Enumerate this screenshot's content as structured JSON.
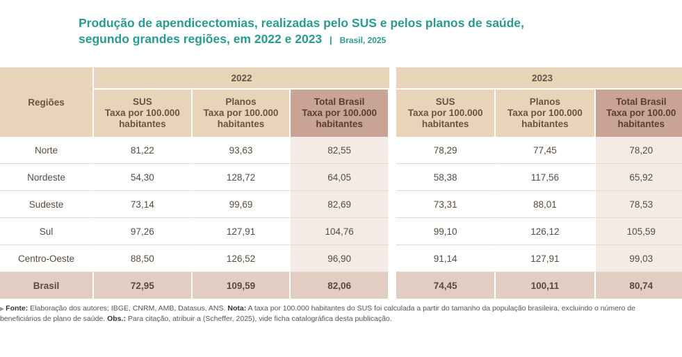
{
  "title": {
    "line1": "Produção de apendicectomias, realizadas pelo SUS e pelos planos de saúde,",
    "line2": "segundo grandes regiões, em 2022 e 2023",
    "separator": "|",
    "subtitle": "Brasil, 2025"
  },
  "table": {
    "regions_header": "Regiões",
    "years": [
      "2022",
      "2023"
    ],
    "columns": [
      {
        "l1": "SUS",
        "l2": "Taxa por 100.000",
        "l3": "habitantes"
      },
      {
        "l1": "Planos",
        "l2": "Taxa por 100.000",
        "l3": "habitantes"
      },
      {
        "l1": "Total Brasil",
        "l2": "Taxa por 100.000",
        "l3": "habitantes"
      }
    ],
    "columns_2023_total": {
      "l1": "Total Brasil",
      "l2": "Taxa por 100.00",
      "l3": "habitantes"
    },
    "rows": [
      {
        "region": "Norte",
        "y2022": [
          "81,22",
          "93,63",
          "82,55"
        ],
        "y2023": [
          "78,29",
          "77,45",
          "78,20"
        ]
      },
      {
        "region": "Nordeste",
        "y2022": [
          "54,30",
          "128,72",
          "64,05"
        ],
        "y2023": [
          "58,38",
          "117,56",
          "65,92"
        ]
      },
      {
        "region": "Sudeste",
        "y2022": [
          "73,14",
          "99,69",
          "82,69"
        ],
        "y2023": [
          "73,31",
          "88,01",
          "78,53"
        ]
      },
      {
        "region": "Sul",
        "y2022": [
          "97,26",
          "127,91",
          "104,76"
        ],
        "y2023": [
          "99,10",
          "126,12",
          "105,59"
        ]
      },
      {
        "region": "Centro-Oeste",
        "y2022": [
          "88,50",
          "126,52",
          "96,90"
        ],
        "y2023": [
          "91,14",
          "127,91",
          "99,03"
        ]
      },
      {
        "region": "Brasil",
        "y2022": [
          "72,95",
          "109,59",
          "82,06"
        ],
        "y2023": [
          "74,45",
          "100,11",
          "80,74"
        ]
      }
    ]
  },
  "footnote": {
    "marker": "▶",
    "fonte_label": "Fonte:",
    "fonte_text": " Elaboração dos autores; IBGE, CNRM, AMB, Datasus, ANS. ",
    "nota_label": "Nota:",
    "nota_text": " A taxa por 100.000 habitantes do SUS foi calculada a partir do tamanho da população brasileira, excluindo o número de beneficiários de plano de saúde. ",
    "obs_label": "Obs.:",
    "obs_text": " Para citação, atribuir a (Scheffer, 2025), vide ficha catalográfica desta publicação."
  },
  "colors": {
    "title": "#2a9a8e",
    "header_bg": "#e8d4b9",
    "total_header_bg": "#c9a394",
    "total_cell_bg": "#f4ebe6",
    "brasil_row_bg": "#e2cdc3"
  }
}
